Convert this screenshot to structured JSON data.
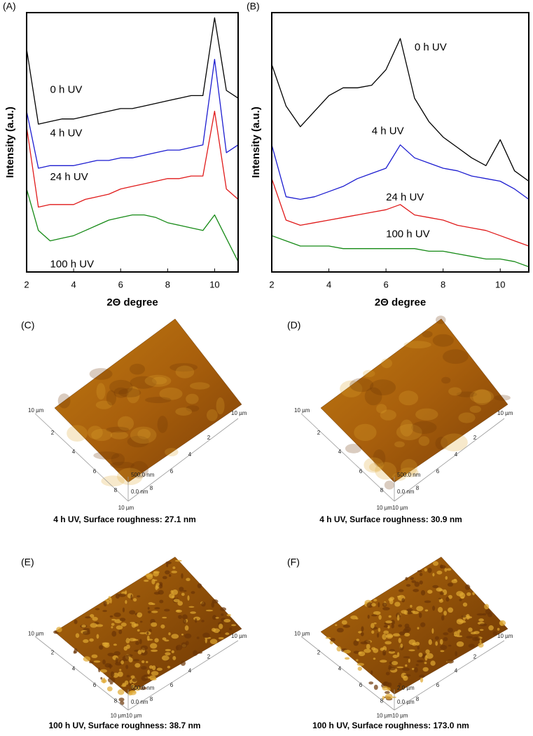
{
  "chart_data": [
    {
      "type": "line",
      "panel_label": "(A)",
      "xlabel": "2Θ degree",
      "ylabel": "Intensity (a.u.)",
      "x": [
        2,
        2.5,
        3,
        3.5,
        4,
        4.5,
        5,
        5.5,
        6,
        6.5,
        7,
        7.5,
        8,
        8.5,
        9,
        9.5,
        10,
        10.5,
        11
      ],
      "xlim": [
        2,
        11
      ],
      "xticks": [
        2,
        4,
        6,
        8,
        10
      ],
      "ylim": [
        0,
        100
      ],
      "series": [
        {
          "name": "0 h UV",
          "color": "#000000",
          "values": [
            86,
            57,
            58,
            59,
            59,
            60,
            61,
            62,
            63,
            63,
            64,
            65,
            66,
            67,
            68,
            68,
            98,
            70,
            67
          ]
        },
        {
          "name": "4 h UV",
          "color": "#1c1cd0",
          "values": [
            62,
            40,
            41,
            41,
            41,
            42,
            43,
            43,
            44,
            44,
            45,
            46,
            47,
            47,
            48,
            49,
            82,
            46,
            49
          ]
        },
        {
          "name": "24 h UV",
          "color": "#e01a1a",
          "values": [
            56,
            25,
            26,
            26,
            26,
            28,
            29,
            30,
            32,
            33,
            34,
            35,
            36,
            36,
            37,
            37,
            62,
            32,
            28
          ]
        },
        {
          "name": "100 h UV",
          "color": "#168a16",
          "values": [
            32,
            16,
            12,
            13,
            14,
            16,
            18,
            20,
            21,
            22,
            22,
            21,
            19,
            18,
            17,
            16,
            22,
            13,
            4
          ]
        }
      ]
    },
    {
      "type": "line",
      "panel_label": "(B)",
      "xlabel": "2Θ degree",
      "ylabel": "Intensity (a.u.)",
      "x": [
        2,
        2.5,
        3,
        3.5,
        4,
        4.5,
        5,
        5.5,
        6,
        6.5,
        7,
        7.5,
        8,
        8.5,
        9,
        9.5,
        10,
        10.5,
        11
      ],
      "xlim": [
        2,
        11
      ],
      "xticks": [
        2,
        4,
        6,
        8,
        10
      ],
      "ylim": [
        0,
        100
      ],
      "series": [
        {
          "name": "0 h UV",
          "color": "#000000",
          "values": [
            80,
            64,
            56,
            62,
            68,
            71,
            71,
            72,
            78,
            90,
            67,
            58,
            52,
            48,
            44,
            41,
            51,
            39,
            35
          ]
        },
        {
          "name": "4 h UV",
          "color": "#1c1cd0",
          "values": [
            49,
            29,
            28,
            29,
            31,
            33,
            36,
            38,
            40,
            49,
            44,
            42,
            40,
            39,
            37,
            36,
            35,
            32,
            28
          ]
        },
        {
          "name": "24 h UV",
          "color": "#e01a1a",
          "values": [
            36,
            20,
            18,
            19,
            20,
            21,
            22,
            23,
            24,
            26,
            22,
            21,
            20,
            18,
            17,
            16,
            14,
            12,
            10
          ]
        },
        {
          "name": "100 h UV",
          "color": "#168a16",
          "values": [
            14,
            12,
            10,
            10,
            10,
            9,
            9,
            9,
            9,
            9,
            9,
            8,
            8,
            7,
            6,
            5,
            5,
            4,
            2
          ]
        }
      ]
    }
  ],
  "afm_panels": [
    {
      "panel_label": "(C)",
      "caption": "4 h UV, Surface roughness: 27.1 nm",
      "left_corner_label": "10 µm",
      "right_corner_label": "10 µm",
      "bottom_label": "10 µm",
      "z_top_label": "500.0 nm",
      "z_bottom_label": "0.0 nm",
      "left_ticks": [
        "2",
        "4",
        "6",
        "8"
      ],
      "right_ticks": [
        "2",
        "4",
        "6",
        "8"
      ]
    },
    {
      "panel_label": "(D)",
      "caption": "4 h UV, Surface roughness: 30.9 nm",
      "left_corner_label": "10 µm",
      "right_corner_label": "10 µm",
      "bottom_label": "10 µm10 µm",
      "z_top_label": "500.0 nm",
      "z_bottom_label": "0.0 nm",
      "left_ticks": [
        "2",
        "4",
        "6",
        "8"
      ],
      "right_ticks": [
        "2",
        "4",
        "6",
        "8"
      ]
    },
    {
      "panel_label": "(E)",
      "caption": "100 h UV, Surface roughness: 38.7 nm",
      "left_corner_label": "10 µm",
      "right_corner_label": "10 µm",
      "bottom_label": "10 µm10 µm",
      "z_top_label": "500.0 nm",
      "z_bottom_label": "0.0 nm",
      "left_ticks": [
        "2",
        "4",
        "6",
        "8"
      ],
      "right_ticks": [
        "2",
        "4",
        "6",
        "8"
      ]
    },
    {
      "panel_label": "(F)",
      "caption": "100 h UV, Surface roughness: 173.0 nm",
      "left_corner_label": "10 µm",
      "right_corner_label": "10 µm",
      "bottom_label": "10 µm10 µm",
      "z_top_label": "2.0 µm",
      "z_bottom_label": "0.0 µm",
      "left_ticks": [
        "2",
        "4",
        "6",
        "8"
      ],
      "right_ticks": [
        "2",
        "4",
        "6",
        "8"
      ]
    }
  ]
}
